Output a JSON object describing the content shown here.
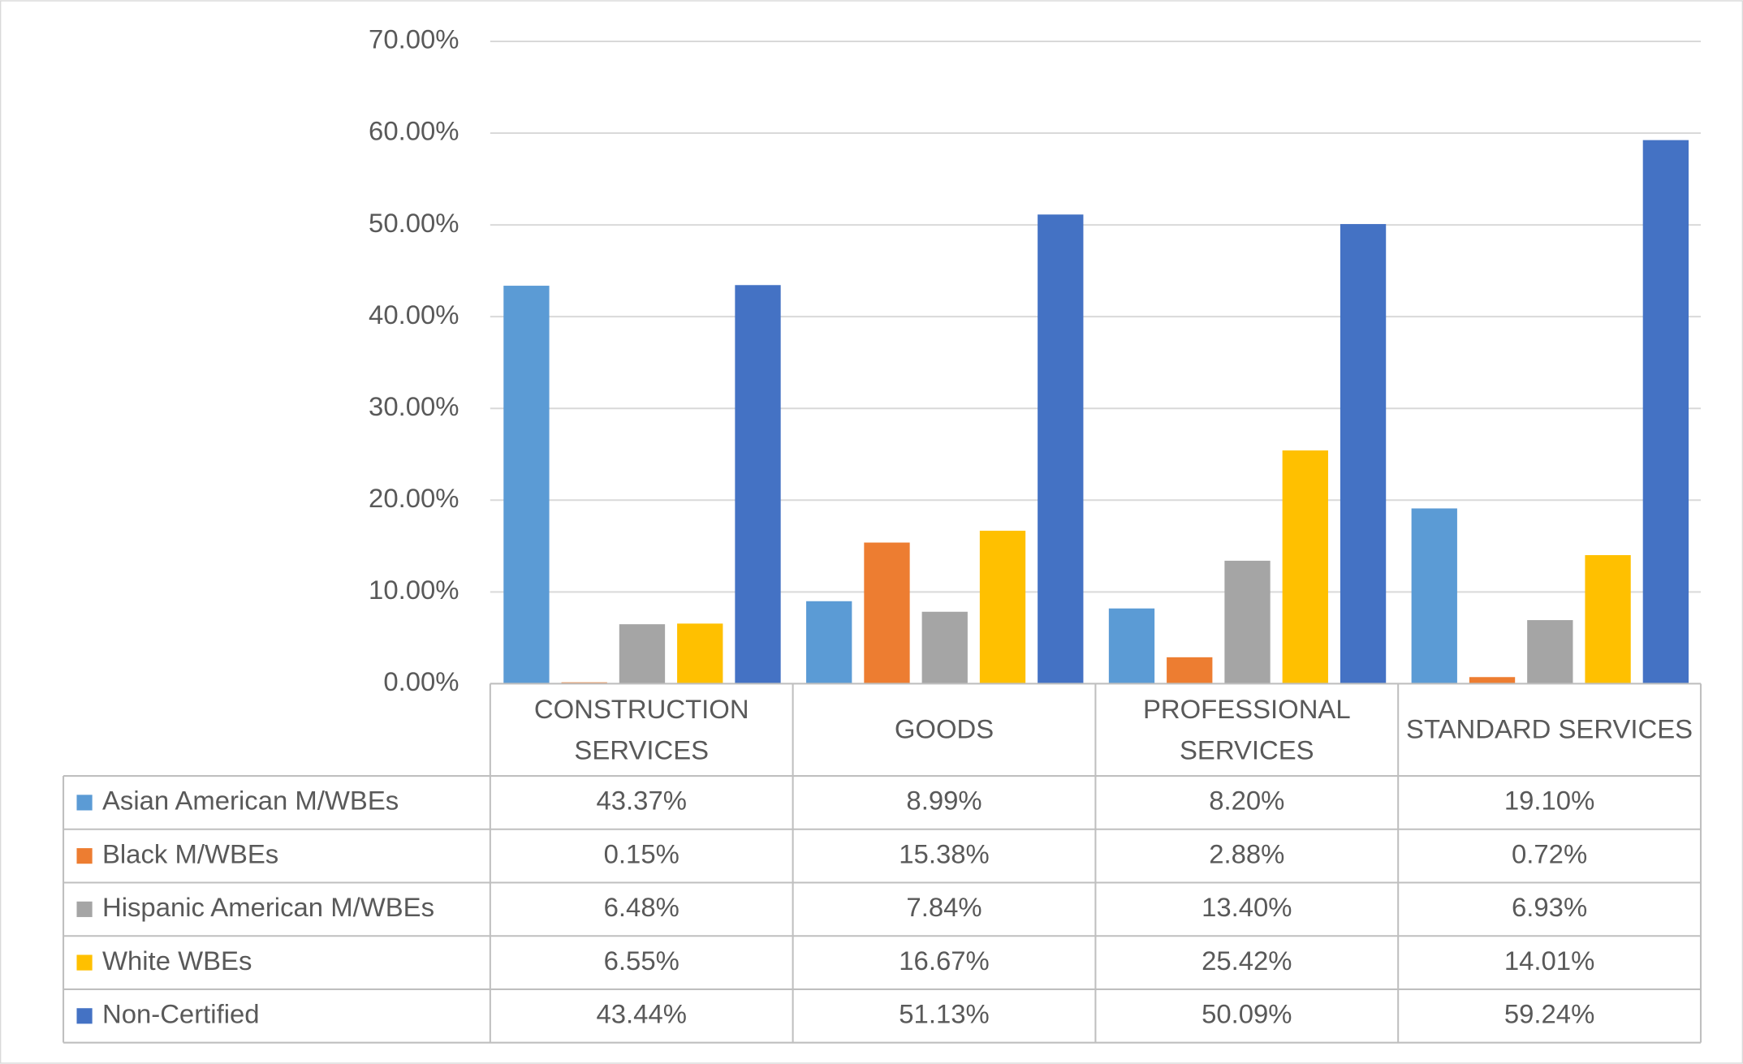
{
  "chart_data": {
    "type": "bar",
    "categories": [
      "CONSTRUCTION SERVICES",
      "GOODS",
      "PROFESSIONAL SERVICES",
      "STANDARD SERVICES"
    ],
    "series": [
      {
        "name": "Asian American M/WBEs",
        "color": "#5b9bd5",
        "values": [
          43.37,
          8.99,
          8.2,
          19.1
        ],
        "value_labels": [
          "43.37%",
          "8.99%",
          "8.20%",
          "19.10%"
        ]
      },
      {
        "name": "Black M/WBEs",
        "color": "#ed7d31",
        "values": [
          0.15,
          15.38,
          2.88,
          0.72
        ],
        "value_labels": [
          "0.15%",
          "15.38%",
          "2.88%",
          "0.72%"
        ]
      },
      {
        "name": "Hispanic American M/WBEs",
        "color": "#a5a5a5",
        "values": [
          6.48,
          7.84,
          13.4,
          6.93
        ],
        "value_labels": [
          "6.48%",
          "7.84%",
          "13.40%",
          "6.93%"
        ]
      },
      {
        "name": "White WBEs",
        "color": "#ffc000",
        "values": [
          6.55,
          16.67,
          25.42,
          14.01
        ],
        "value_labels": [
          "6.55%",
          "16.67%",
          "25.42%",
          "14.01%"
        ]
      },
      {
        "name": "Non-Certified",
        "color": "#4472c4",
        "values": [
          43.44,
          51.13,
          50.09,
          59.24
        ],
        "value_labels": [
          "43.44%",
          "51.13%",
          "50.09%",
          "59.24%"
        ]
      }
    ],
    "ylim": [
      0,
      70
    ],
    "yticks": [
      {
        "value": 0,
        "label": "0.00%"
      },
      {
        "value": 10,
        "label": "10.00%"
      },
      {
        "value": 20,
        "label": "20.00%"
      },
      {
        "value": 30,
        "label": "30.00%"
      },
      {
        "value": 40,
        "label": "40.00%"
      },
      {
        "value": 50,
        "label": "50.00%"
      },
      {
        "value": 60,
        "label": "60.00%"
      },
      {
        "value": 70,
        "label": "70.00%"
      }
    ],
    "grid": true,
    "legend": "table"
  }
}
